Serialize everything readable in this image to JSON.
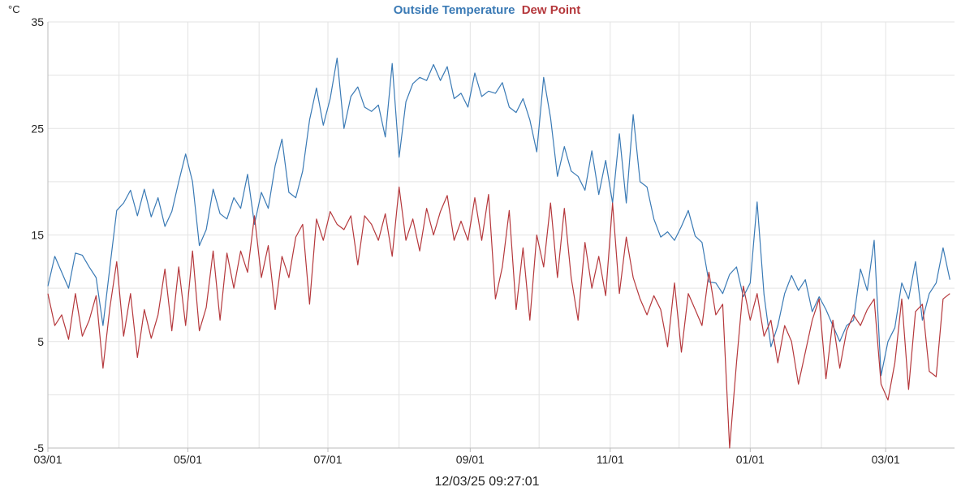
{
  "chart_data": {
    "type": "line",
    "ylabel": "°C",
    "ylim": [
      -5,
      35
    ],
    "yticks": [
      35,
      25,
      15,
      5,
      -5
    ],
    "ygrid": [
      35,
      30,
      25,
      20,
      15,
      10,
      5,
      0,
      -5
    ],
    "xlim": [
      "2024-03-01",
      "2025-03-31"
    ],
    "xticks": [
      {
        "date": "2024-03-01",
        "label": "03/01"
      },
      {
        "date": "2024-05-01",
        "label": "05/01"
      },
      {
        "date": "2024-07-01",
        "label": "07/01"
      },
      {
        "date": "2024-09-01",
        "label": "09/01"
      },
      {
        "date": "2024-11-01",
        "label": "11/01"
      },
      {
        "date": "2025-01-01",
        "label": "01/01"
      },
      {
        "date": "2025-03-01",
        "label": "03/01"
      }
    ],
    "xgrid": [
      "2024-03-01",
      "2024-04-01",
      "2024-05-01",
      "2024-06-01",
      "2024-07-01",
      "2024-08-01",
      "2024-09-01",
      "2024-10-01",
      "2024-11-01",
      "2024-12-01",
      "2025-01-01",
      "2025-02-01",
      "2025-03-01",
      "2025-04-01"
    ],
    "grid": true,
    "legend_position": "top-center",
    "footer": "12/03/25 09:27:01",
    "series": [
      {
        "name": "Outside Temperature",
        "color": "#3a7ab5",
        "points": [
          [
            "2024-03-01",
            10.2
          ],
          [
            "2024-03-04",
            13
          ],
          [
            "2024-03-07",
            11.5
          ],
          [
            "2024-03-10",
            10
          ],
          [
            "2024-03-13",
            13.3
          ],
          [
            "2024-03-16",
            13.1
          ],
          [
            "2024-03-19",
            12
          ],
          [
            "2024-03-22",
            11
          ],
          [
            "2024-03-25",
            6.5
          ],
          [
            "2024-03-28",
            12
          ],
          [
            "2024-03-31",
            17.3
          ],
          [
            "2024-04-03",
            18
          ],
          [
            "2024-04-06",
            19.2
          ],
          [
            "2024-04-09",
            16.8
          ],
          [
            "2024-04-12",
            19.3
          ],
          [
            "2024-04-15",
            16.7
          ],
          [
            "2024-04-18",
            18.5
          ],
          [
            "2024-04-21",
            15.8
          ],
          [
            "2024-04-24",
            17.2
          ],
          [
            "2024-04-27",
            20
          ],
          [
            "2024-04-30",
            22.6
          ],
          [
            "2024-05-03",
            20
          ],
          [
            "2024-05-06",
            14
          ],
          [
            "2024-05-09",
            15.5
          ],
          [
            "2024-05-12",
            19.3
          ],
          [
            "2024-05-15",
            17
          ],
          [
            "2024-05-18",
            16.5
          ],
          [
            "2024-05-21",
            18.5
          ],
          [
            "2024-05-24",
            17.5
          ],
          [
            "2024-05-27",
            20.7
          ],
          [
            "2024-05-30",
            16
          ],
          [
            "2024-06-02",
            19
          ],
          [
            "2024-06-05",
            17.5
          ],
          [
            "2024-06-08",
            21.5
          ],
          [
            "2024-06-11",
            24
          ],
          [
            "2024-06-14",
            19
          ],
          [
            "2024-06-17",
            18.5
          ],
          [
            "2024-06-20",
            21
          ],
          [
            "2024-06-23",
            25.8
          ],
          [
            "2024-06-26",
            28.8
          ],
          [
            "2024-06-29",
            25.3
          ],
          [
            "2024-07-02",
            27.8
          ],
          [
            "2024-07-05",
            31.6
          ],
          [
            "2024-07-08",
            25
          ],
          [
            "2024-07-11",
            28
          ],
          [
            "2024-07-14",
            28.9
          ],
          [
            "2024-07-17",
            27
          ],
          [
            "2024-07-20",
            26.6
          ],
          [
            "2024-07-23",
            27.2
          ],
          [
            "2024-07-26",
            24.2
          ],
          [
            "2024-07-29",
            31.1
          ],
          [
            "2024-08-01",
            22.3
          ],
          [
            "2024-08-04",
            27.5
          ],
          [
            "2024-08-07",
            29.2
          ],
          [
            "2024-08-10",
            29.8
          ],
          [
            "2024-08-13",
            29.5
          ],
          [
            "2024-08-16",
            31
          ],
          [
            "2024-08-19",
            29.5
          ],
          [
            "2024-08-22",
            30.8
          ],
          [
            "2024-08-25",
            27.8
          ],
          [
            "2024-08-28",
            28.3
          ],
          [
            "2024-08-31",
            27
          ],
          [
            "2024-09-03",
            30.2
          ],
          [
            "2024-09-06",
            28
          ],
          [
            "2024-09-09",
            28.5
          ],
          [
            "2024-09-12",
            28.3
          ],
          [
            "2024-09-15",
            29.3
          ],
          [
            "2024-09-18",
            27
          ],
          [
            "2024-09-21",
            26.5
          ],
          [
            "2024-09-24",
            27.8
          ],
          [
            "2024-09-27",
            25.8
          ],
          [
            "2024-09-30",
            22.8
          ],
          [
            "2024-10-03",
            29.8
          ],
          [
            "2024-10-06",
            26
          ],
          [
            "2024-10-09",
            20.5
          ],
          [
            "2024-10-12",
            23.3
          ],
          [
            "2024-10-15",
            21
          ],
          [
            "2024-10-18",
            20.5
          ],
          [
            "2024-10-21",
            19.2
          ],
          [
            "2024-10-24",
            22.9
          ],
          [
            "2024-10-27",
            18.8
          ],
          [
            "2024-10-30",
            22
          ],
          [
            "2024-11-02",
            18
          ],
          [
            "2024-11-05",
            24.5
          ],
          [
            "2024-11-08",
            18
          ],
          [
            "2024-11-11",
            26.3
          ],
          [
            "2024-11-14",
            20
          ],
          [
            "2024-11-17",
            19.5
          ],
          [
            "2024-11-20",
            16.5
          ],
          [
            "2024-11-23",
            14.8
          ],
          [
            "2024-11-26",
            15.3
          ],
          [
            "2024-11-29",
            14.5
          ],
          [
            "2024-12-02",
            15.8
          ],
          [
            "2024-12-05",
            17.3
          ],
          [
            "2024-12-08",
            14.9
          ],
          [
            "2024-12-11",
            14.3
          ],
          [
            "2024-12-14",
            10.6
          ],
          [
            "2024-12-17",
            10.5
          ],
          [
            "2024-12-20",
            9.5
          ],
          [
            "2024-12-23",
            11.3
          ],
          [
            "2024-12-26",
            12
          ],
          [
            "2024-12-29",
            9.2
          ],
          [
            "2025-01-01",
            10.5
          ],
          [
            "2025-01-04",
            18.1
          ],
          [
            "2025-01-07",
            9.4
          ],
          [
            "2025-01-10",
            4.5
          ],
          [
            "2025-01-13",
            6.5
          ],
          [
            "2025-01-16",
            9.5
          ],
          [
            "2025-01-19",
            11.2
          ],
          [
            "2025-01-22",
            9.8
          ],
          [
            "2025-01-25",
            10.8
          ],
          [
            "2025-01-28",
            7.8
          ],
          [
            "2025-01-31",
            9.2
          ],
          [
            "2025-02-03",
            8
          ],
          [
            "2025-02-06",
            6.5
          ],
          [
            "2025-02-09",
            5
          ],
          [
            "2025-02-12",
            6.5
          ],
          [
            "2025-02-15",
            7
          ],
          [
            "2025-02-18",
            11.8
          ],
          [
            "2025-02-21",
            9.8
          ],
          [
            "2025-02-24",
            14.5
          ],
          [
            "2025-02-27",
            1.8
          ],
          [
            "2025-03-02",
            5
          ],
          [
            "2025-03-05",
            6.3
          ],
          [
            "2025-03-08",
            10.5
          ],
          [
            "2025-03-11",
            9
          ],
          [
            "2025-03-14",
            12.5
          ],
          [
            "2025-03-17",
            7
          ],
          [
            "2025-03-20",
            9.5
          ],
          [
            "2025-03-23",
            10.5
          ],
          [
            "2025-03-26",
            13.8
          ],
          [
            "2025-03-29",
            10.8
          ]
        ]
      },
      {
        "name": "Dew Point",
        "color": "#b5383c",
        "points": [
          [
            "2024-03-01",
            9.5
          ],
          [
            "2024-03-04",
            6.5
          ],
          [
            "2024-03-07",
            7.5
          ],
          [
            "2024-03-10",
            5.2
          ],
          [
            "2024-03-13",
            9.5
          ],
          [
            "2024-03-16",
            5.5
          ],
          [
            "2024-03-19",
            7
          ],
          [
            "2024-03-22",
            9.3
          ],
          [
            "2024-03-25",
            2.5
          ],
          [
            "2024-03-28",
            8.2
          ],
          [
            "2024-03-31",
            12.5
          ],
          [
            "2024-04-03",
            5.5
          ],
          [
            "2024-04-06",
            9.5
          ],
          [
            "2024-04-09",
            3.5
          ],
          [
            "2024-04-12",
            8
          ],
          [
            "2024-04-15",
            5.3
          ],
          [
            "2024-04-18",
            7.5
          ],
          [
            "2024-04-21",
            11.8
          ],
          [
            "2024-04-24",
            6
          ],
          [
            "2024-04-27",
            12
          ],
          [
            "2024-04-30",
            6.5
          ],
          [
            "2024-05-03",
            13.5
          ],
          [
            "2024-05-06",
            6
          ],
          [
            "2024-05-09",
            8.2
          ],
          [
            "2024-05-12",
            13.5
          ],
          [
            "2024-05-15",
            7
          ],
          [
            "2024-05-18",
            13.3
          ],
          [
            "2024-05-21",
            10
          ],
          [
            "2024-05-24",
            13.5
          ],
          [
            "2024-05-27",
            11.5
          ],
          [
            "2024-05-30",
            16.8
          ],
          [
            "2024-06-02",
            11
          ],
          [
            "2024-06-05",
            14
          ],
          [
            "2024-06-08",
            8
          ],
          [
            "2024-06-11",
            13
          ],
          [
            "2024-06-14",
            11
          ],
          [
            "2024-06-17",
            14.8
          ],
          [
            "2024-06-20",
            16
          ],
          [
            "2024-06-23",
            8.5
          ],
          [
            "2024-06-26",
            16.5
          ],
          [
            "2024-06-29",
            14.5
          ],
          [
            "2024-07-02",
            17.2
          ],
          [
            "2024-07-05",
            16
          ],
          [
            "2024-07-08",
            15.5
          ],
          [
            "2024-07-11",
            16.8
          ],
          [
            "2024-07-14",
            12.2
          ],
          [
            "2024-07-17",
            16.8
          ],
          [
            "2024-07-20",
            16
          ],
          [
            "2024-07-23",
            14.5
          ],
          [
            "2024-07-26",
            17
          ],
          [
            "2024-07-29",
            13
          ],
          [
            "2024-08-01",
            19.5
          ],
          [
            "2024-08-04",
            14.5
          ],
          [
            "2024-08-07",
            16.5
          ],
          [
            "2024-08-10",
            13.5
          ],
          [
            "2024-08-13",
            17.5
          ],
          [
            "2024-08-16",
            15
          ],
          [
            "2024-08-19",
            17.2
          ],
          [
            "2024-08-22",
            18.7
          ],
          [
            "2024-08-25",
            14.5
          ],
          [
            "2024-08-28",
            16.3
          ],
          [
            "2024-08-31",
            14.5
          ],
          [
            "2024-09-03",
            18.5
          ],
          [
            "2024-09-06",
            14.5
          ],
          [
            "2024-09-09",
            18.8
          ],
          [
            "2024-09-12",
            9
          ],
          [
            "2024-09-15",
            12
          ],
          [
            "2024-09-18",
            17.3
          ],
          [
            "2024-09-21",
            8
          ],
          [
            "2024-09-24",
            13.8
          ],
          [
            "2024-09-27",
            7
          ],
          [
            "2024-09-30",
            15
          ],
          [
            "2024-10-03",
            12
          ],
          [
            "2024-10-06",
            18
          ],
          [
            "2024-10-09",
            11
          ],
          [
            "2024-10-12",
            17.5
          ],
          [
            "2024-10-15",
            11
          ],
          [
            "2024-10-18",
            7
          ],
          [
            "2024-10-21",
            14.3
          ],
          [
            "2024-10-24",
            10
          ],
          [
            "2024-10-27",
            13
          ],
          [
            "2024-10-30",
            9.3
          ],
          [
            "2024-11-02",
            18
          ],
          [
            "2024-11-05",
            9.5
          ],
          [
            "2024-11-08",
            14.8
          ],
          [
            "2024-11-11",
            11
          ],
          [
            "2024-11-14",
            9
          ],
          [
            "2024-11-17",
            7.5
          ],
          [
            "2024-11-20",
            9.3
          ],
          [
            "2024-11-23",
            8
          ],
          [
            "2024-11-26",
            4.5
          ],
          [
            "2024-11-29",
            10.5
          ],
          [
            "2024-12-02",
            4
          ],
          [
            "2024-12-05",
            9.5
          ],
          [
            "2024-12-08",
            8
          ],
          [
            "2024-12-11",
            6.5
          ],
          [
            "2024-12-14",
            11.5
          ],
          [
            "2024-12-17",
            7.5
          ],
          [
            "2024-12-20",
            8.5
          ],
          [
            "2024-12-23",
            -5
          ],
          [
            "2024-12-26",
            3
          ],
          [
            "2024-12-29",
            10.2
          ],
          [
            "2025-01-01",
            7
          ],
          [
            "2025-01-04",
            9.5
          ],
          [
            "2025-01-07",
            5.5
          ],
          [
            "2025-01-10",
            7
          ],
          [
            "2025-01-13",
            3
          ],
          [
            "2025-01-16",
            6.5
          ],
          [
            "2025-01-19",
            5
          ],
          [
            "2025-01-22",
            1
          ],
          [
            "2025-01-25",
            4
          ],
          [
            "2025-01-28",
            7
          ],
          [
            "2025-01-31",
            9
          ],
          [
            "2025-02-03",
            1.5
          ],
          [
            "2025-02-06",
            7
          ],
          [
            "2025-02-09",
            2.5
          ],
          [
            "2025-02-12",
            6
          ],
          [
            "2025-02-15",
            7.5
          ],
          [
            "2025-02-18",
            6.5
          ],
          [
            "2025-02-21",
            8
          ],
          [
            "2025-02-24",
            9
          ],
          [
            "2025-02-27",
            1
          ],
          [
            "2025-03-02",
            -0.5
          ],
          [
            "2025-03-05",
            3
          ],
          [
            "2025-03-08",
            9
          ],
          [
            "2025-03-11",
            0.5
          ],
          [
            "2025-03-14",
            7.8
          ],
          [
            "2025-03-17",
            8.5
          ],
          [
            "2025-03-20",
            2.2
          ],
          [
            "2025-03-23",
            1.7
          ],
          [
            "2025-03-26",
            9
          ],
          [
            "2025-03-29",
            9.5
          ]
        ]
      }
    ]
  }
}
